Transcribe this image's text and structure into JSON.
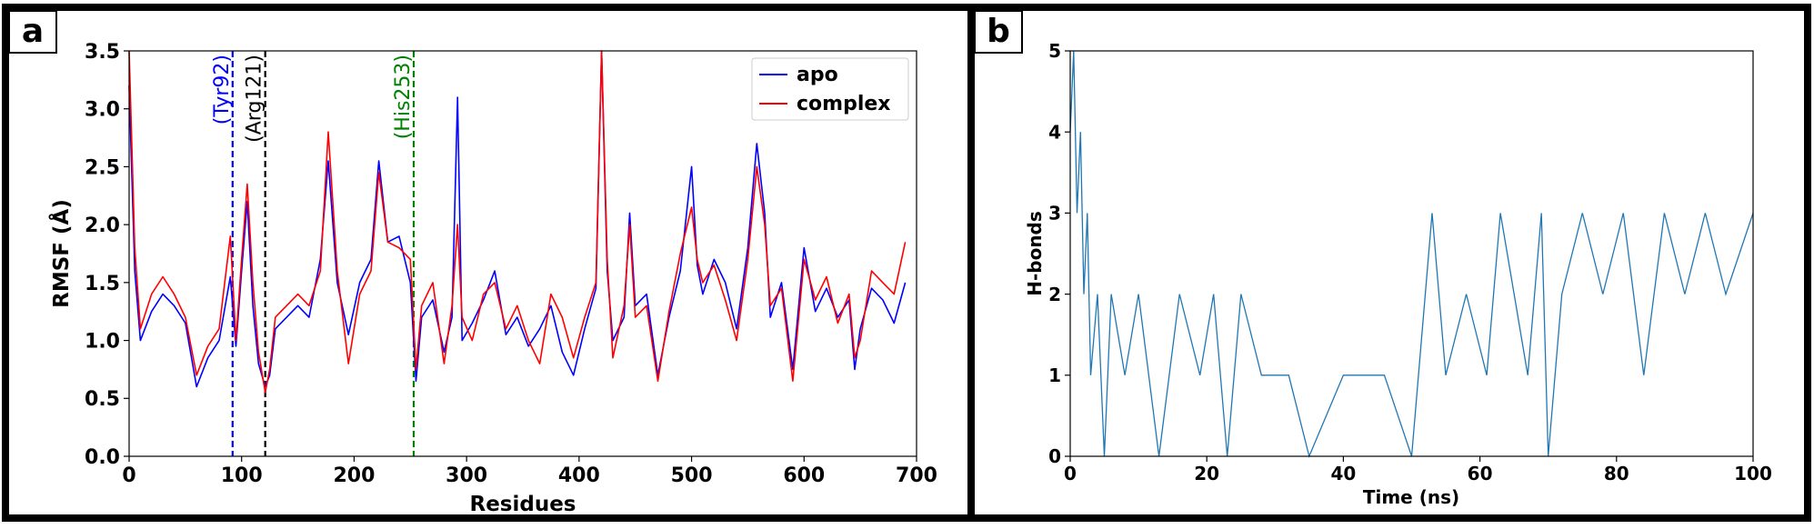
{
  "chart_data": [
    {
      "panel_label": "a",
      "type": "line",
      "xlabel": "Residues",
      "ylabel": "RMSF (Å)",
      "xlim": [
        0,
        700
      ],
      "ylim": [
        0,
        3.5
      ],
      "xticks": [
        0,
        100,
        200,
        300,
        400,
        500,
        600,
        700
      ],
      "xtick_labels": [
        "0",
        "100",
        "200",
        "300",
        "400",
        "500",
        "600",
        "700"
      ],
      "yticks": [
        0.0,
        0.5,
        1.0,
        1.5,
        2.0,
        2.5,
        3.0,
        3.5
      ],
      "ytick_labels": [
        "0.0",
        "0.5",
        "1.0",
        "1.5",
        "2.0",
        "2.5",
        "3.0",
        "3.5"
      ],
      "legend": {
        "placement": "top-right",
        "entries": [
          "apo",
          "complex"
        ]
      },
      "annotations": [
        {
          "label": "(Tyr92)",
          "x": 92,
          "color": "#0000ff"
        },
        {
          "label": "(Arg121)",
          "x": 121,
          "color": "#000000"
        },
        {
          "label": "(His253)",
          "x": 253,
          "color": "#008000"
        }
      ],
      "series": [
        {
          "name": "apo",
          "color": "#0000ff",
          "x": [
            0,
            5,
            10,
            20,
            30,
            40,
            50,
            60,
            70,
            80,
            90,
            95,
            100,
            105,
            110,
            115,
            121,
            125,
            130,
            140,
            150,
            160,
            170,
            177,
            185,
            195,
            205,
            215,
            222,
            230,
            240,
            250,
            255,
            260,
            270,
            280,
            287,
            292,
            296,
            305,
            315,
            325,
            335,
            345,
            355,
            365,
            375,
            385,
            395,
            405,
            415,
            420,
            425,
            430,
            440,
            445,
            450,
            460,
            470,
            480,
            490,
            500,
            505,
            510,
            520,
            530,
            540,
            550,
            558,
            565,
            570,
            580,
            590,
            600,
            610,
            620,
            630,
            640,
            645,
            650,
            660,
            670,
            680,
            690
          ],
          "values": [
            3.2,
            1.6,
            1.0,
            1.25,
            1.4,
            1.3,
            1.15,
            0.6,
            0.85,
            1.0,
            1.55,
            0.95,
            1.6,
            2.2,
            1.3,
            0.8,
            0.6,
            0.7,
            1.1,
            1.2,
            1.3,
            1.2,
            1.7,
            2.55,
            1.5,
            1.05,
            1.5,
            1.7,
            2.55,
            1.85,
            1.9,
            1.5,
            0.65,
            1.2,
            1.35,
            0.9,
            1.2,
            3.1,
            1.0,
            1.15,
            1.35,
            1.6,
            1.05,
            1.2,
            0.95,
            1.1,
            1.3,
            0.9,
            0.7,
            1.1,
            1.45,
            3.55,
            1.6,
            1.0,
            1.2,
            2.1,
            1.3,
            1.4,
            0.7,
            1.2,
            1.6,
            2.5,
            1.65,
            1.4,
            1.7,
            1.5,
            1.1,
            1.8,
            2.7,
            2.1,
            1.2,
            1.5,
            0.75,
            1.8,
            1.25,
            1.45,
            1.2,
            1.35,
            0.75,
            1.1,
            1.45,
            1.35,
            1.15,
            1.5
          ]
        },
        {
          "name": "complex",
          "color": "#ff0000",
          "x": [
            0,
            5,
            10,
            20,
            30,
            40,
            50,
            60,
            70,
            80,
            90,
            95,
            100,
            105,
            110,
            115,
            121,
            125,
            130,
            140,
            150,
            160,
            170,
            177,
            185,
            195,
            205,
            215,
            222,
            230,
            240,
            250,
            255,
            260,
            270,
            280,
            287,
            292,
            296,
            305,
            315,
            325,
            335,
            345,
            355,
            365,
            375,
            385,
            395,
            405,
            415,
            420,
            425,
            430,
            440,
            445,
            450,
            460,
            470,
            480,
            490,
            500,
            505,
            510,
            520,
            530,
            540,
            550,
            558,
            565,
            570,
            580,
            590,
            600,
            610,
            620,
            630,
            640,
            645,
            650,
            660,
            670,
            680,
            690
          ],
          "values": [
            3.5,
            1.8,
            1.1,
            1.4,
            1.55,
            1.4,
            1.2,
            0.7,
            0.95,
            1.1,
            1.9,
            1.0,
            1.7,
            2.35,
            1.5,
            0.9,
            0.55,
            0.75,
            1.2,
            1.3,
            1.4,
            1.3,
            1.6,
            2.8,
            1.6,
            0.8,
            1.4,
            1.6,
            2.45,
            1.85,
            1.8,
            1.7,
            0.75,
            1.3,
            1.5,
            0.8,
            1.3,
            2.0,
            1.2,
            1.0,
            1.4,
            1.5,
            1.1,
            1.3,
            1.0,
            0.8,
            1.4,
            1.2,
            0.85,
            1.2,
            1.5,
            3.5,
            1.7,
            0.85,
            1.3,
            2.0,
            1.2,
            1.3,
            0.65,
            1.25,
            1.75,
            2.15,
            1.7,
            1.5,
            1.65,
            1.35,
            1.0,
            1.7,
            2.5,
            2.0,
            1.3,
            1.45,
            0.65,
            1.7,
            1.35,
            1.55,
            1.15,
            1.4,
            0.85,
            1.0,
            1.6,
            1.5,
            1.4,
            1.85
          ]
        }
      ]
    },
    {
      "panel_label": "b",
      "type": "line",
      "xlabel": "Time (ns)",
      "ylabel": "H-bonds",
      "xlim": [
        0,
        100
      ],
      "ylim": [
        0,
        5
      ],
      "xticks": [
        0,
        20,
        40,
        60,
        80,
        100
      ],
      "xtick_labels": [
        "0",
        "20",
        "40",
        "60",
        "80",
        "100"
      ],
      "yticks": [
        0,
        1,
        2,
        3,
        4,
        5
      ],
      "ytick_labels": [
        "0",
        "1",
        "2",
        "3",
        "4",
        "5"
      ],
      "series": [
        {
          "name": "H-bonds",
          "color": "#1f77b4",
          "description_of_regimes": "0-1ns: 2-5; 1-3ns: 1-4; 3-21ns: mostly 0-2; 21-26ns: 0-2; 26-53ns: mostly 0-1; 53-70ns: 0-3; 70-100ns: 0-3 dense",
          "x": [
            0,
            0.5,
            1,
            1.5,
            2,
            2.5,
            3,
            4,
            5,
            6,
            8,
            10,
            13,
            16,
            19,
            21,
            23,
            25,
            28,
            32,
            35,
            40,
            46,
            50,
            53,
            55,
            58,
            61,
            63,
            65,
            67,
            69,
            70,
            72,
            75,
            78,
            81,
            84,
            87,
            90,
            93,
            96,
            100
          ],
          "values": [
            4,
            5,
            3,
            4,
            2,
            3,
            1,
            2,
            0,
            2,
            1,
            2,
            0,
            2,
            1,
            2,
            0,
            2,
            1,
            1,
            0,
            1,
            1,
            0,
            3,
            1,
            2,
            1,
            3,
            2,
            1,
            3,
            0,
            2,
            3,
            2,
            3,
            1,
            3,
            2,
            3,
            2,
            3
          ]
        }
      ]
    }
  ]
}
